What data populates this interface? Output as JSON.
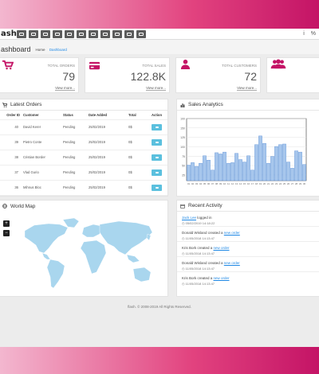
{
  "topbar": {
    "brand": "ash.",
    "tools": [
      "folder-icon",
      "folder-icon",
      "info-icon",
      "clipboard-icon",
      "truck-icon",
      "house-icon",
      "money-icon",
      "cart-icon",
      "cart-icon",
      "sliders-icon",
      "share-icon"
    ],
    "right": [
      "i",
      "%"
    ]
  },
  "header": {
    "title": "ashboard",
    "breadcrumb": [
      "Home",
      "Dashboard"
    ]
  },
  "stats": [
    {
      "label": "TOTAL ORDERS",
      "value": "79",
      "more": "View more...",
      "icon": "cart-icon"
    },
    {
      "label": "TOTAL SALES",
      "value": "122.8K",
      "more": "View more...",
      "icon": "credit-card-icon"
    },
    {
      "label": "TOTAL CUSTOMERS",
      "value": "72",
      "more": "View more...",
      "icon": "user-icon"
    },
    {
      "label": "",
      "value": "",
      "more": "",
      "icon": "users-icon"
    }
  ],
  "orders": {
    "title": "Latest Orders",
    "columns": [
      "Order ID",
      "Customer",
      "Status",
      "Date Added",
      "Total",
      "Action"
    ],
    "rows": [
      {
        "id": "40",
        "customer": "David Kerer",
        "status": "Pending",
        "date": "25/02/2019",
        "total": "0$"
      },
      {
        "id": "39",
        "customer": "Pietro Conte",
        "status": "Pending",
        "date": "25/02/2019",
        "total": "0$"
      },
      {
        "id": "38",
        "customer": "Cristian Border",
        "status": "Pending",
        "date": "25/02/2019",
        "total": "0$"
      },
      {
        "id": "37",
        "customer": "Vlad Gurio",
        "status": "Pending",
        "date": "25/02/2019",
        "total": "0$"
      },
      {
        "id": "36",
        "customer": "Mihnus Bloc",
        "status": "Pending",
        "date": "25/02/2019",
        "total": "0$"
      }
    ]
  },
  "sales": {
    "title": "Sales Analytics"
  },
  "chart_data": {
    "type": "bar",
    "title": "",
    "categories": [
      "01",
      "02",
      "03",
      "04",
      "05",
      "06",
      "07",
      "08",
      "09",
      "10",
      "11",
      "12",
      "13",
      "14",
      "15",
      "16",
      "17",
      "18",
      "19",
      "20",
      "21",
      "22",
      "23",
      "24",
      "25",
      "26",
      "27",
      "28",
      "29",
      "30"
    ],
    "values": [
      25,
      29,
      23,
      28,
      40,
      33,
      17,
      45,
      43,
      46,
      28,
      29,
      44,
      34,
      30,
      40,
      17,
      58,
      72,
      60,
      28,
      39,
      55,
      58,
      59,
      30,
      20,
      48,
      46,
      26
    ],
    "ylim": [
      0,
      100
    ],
    "ticks": [
      "100",
      "150",
      "125",
      "100",
      "75",
      "50",
      "25"
    ],
    "grid": true,
    "color": "#a7c6ec",
    "stroke": "#5b8fd6"
  },
  "map": {
    "title": "World Map",
    "zoom_in": "+",
    "zoom_out": "−"
  },
  "activity": {
    "title": "Recent Activity",
    "items": [
      {
        "pre": "",
        "link": "Jack Lee",
        "post": " logged in",
        "date": "05/02/2019 14:18:22"
      },
      {
        "pre": "Donald Wisland created a ",
        "link": "new order",
        "post": "",
        "date": "11/05/2018 14:13:47"
      },
      {
        "pre": "Kris Bork created a ",
        "link": "new order",
        "post": "",
        "date": "11/05/2018 14:13:47"
      },
      {
        "pre": "Donald Wisland created a ",
        "link": "new order",
        "post": "",
        "date": "11/05/2018 14:13:47"
      },
      {
        "pre": "Kris Bork created a ",
        "link": "new order",
        "post": "",
        "date": "11/05/2018 14:13:47"
      }
    ]
  },
  "footer": "flash. © 2008-2019 All Rights Reserved.",
  "colors": {
    "accent": "#c41466",
    "action": "#5bc0de",
    "link": "#1e88e5"
  }
}
